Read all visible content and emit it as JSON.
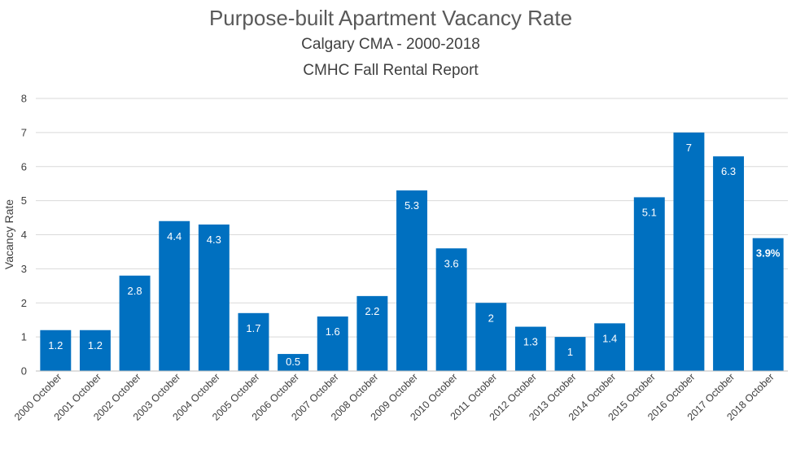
{
  "chart_data": {
    "type": "bar",
    "title": "Purpose-built Apartment Vacancy Rate",
    "subtitle": [
      "Calgary CMA - 2000-2018",
      "CMHC Fall Rental Report"
    ],
    "ylabel": "Vacancy Rate",
    "xlabel": "",
    "ylim": [
      0,
      8
    ],
    "yticks": [
      "0",
      "1",
      "2",
      "3",
      "4",
      "5",
      "6",
      "7",
      "8"
    ],
    "grid": true,
    "legend": "none",
    "categories": [
      "2000 October",
      "2001 October",
      "2002 October",
      "2003 October",
      "2004 October",
      "2005 October",
      "2006 October",
      "2007 October",
      "2008 October",
      "2009 October",
      "2010 October",
      "2011 October",
      "2012 October",
      "2013 October",
      "2014 October",
      "2015 October",
      "2016 October",
      "2017 October",
      "2018 October"
    ],
    "values": [
      1.2,
      1.2,
      2.8,
      4.4,
      4.3,
      1.7,
      0.5,
      1.6,
      2.2,
      5.3,
      3.6,
      2,
      1.3,
      1,
      1.4,
      5.1,
      7,
      6.3,
      3.9
    ],
    "data_labels": [
      "1.2",
      "1.2",
      "2.8",
      "4.4",
      "4.3",
      "1.7",
      "0.5",
      "1.6",
      "2.2",
      "5.3",
      "3.6",
      "2",
      "1.3",
      "1",
      "1.4",
      "5.1",
      "7",
      "6.3",
      "3.9%"
    ],
    "bar_color": "#0070c0"
  }
}
